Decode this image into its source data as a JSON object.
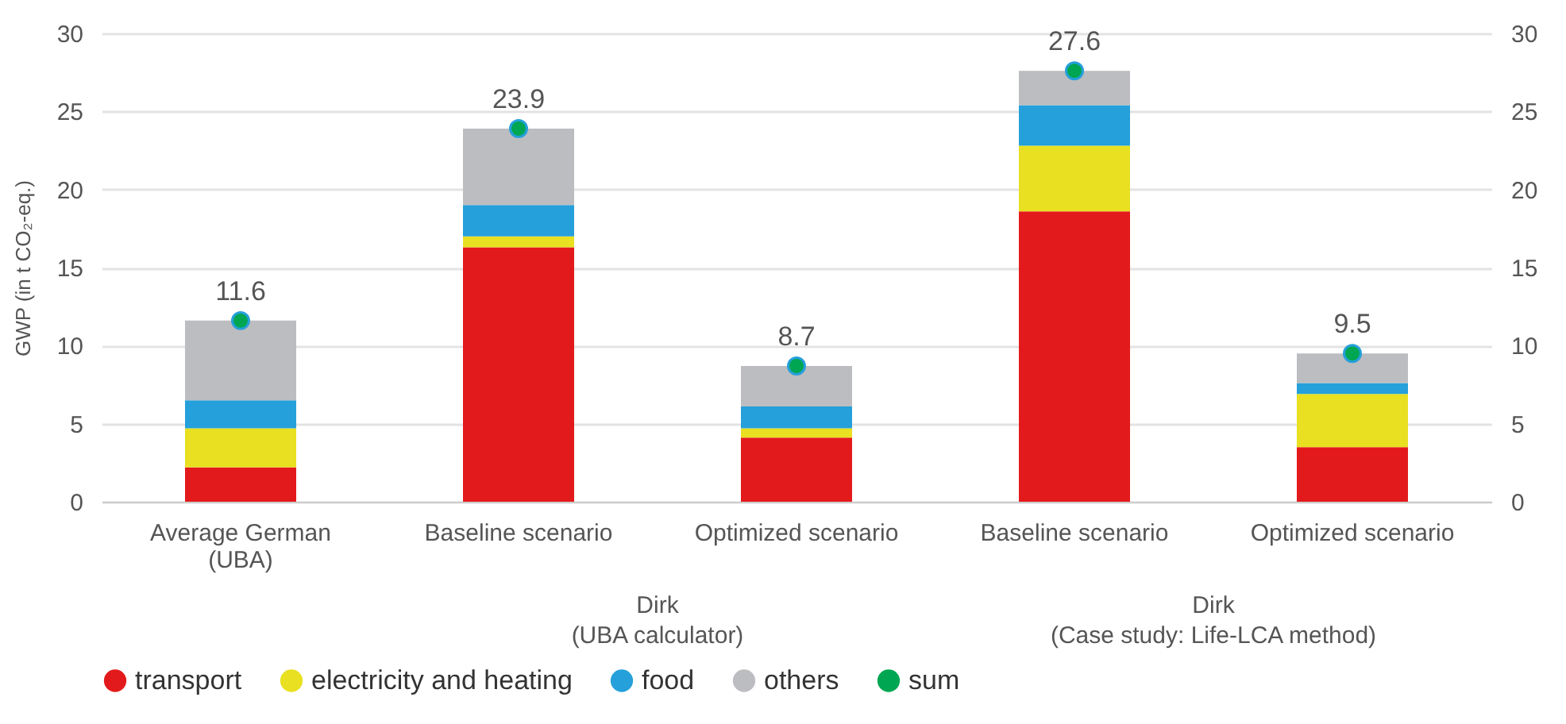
{
  "chart_data": {
    "type": "bar",
    "stacked": true,
    "ylabel": "GWP (in t CO₂-eq.)",
    "categories": [
      "Average German\n(UBA)",
      "Baseline scenario",
      "Optimized scenario",
      "Baseline scenario",
      "Optimized scenario"
    ],
    "annotations": [
      "Dirk\n(UBA calculator)",
      "Dirk\n(Case study: Life-LCA method)"
    ],
    "series": [
      {
        "name": "transport",
        "color": "#e31a1c",
        "values": [
          2.2,
          16.3,
          4.1,
          18.6,
          3.5
        ]
      },
      {
        "name": "electricity and heating",
        "color": "#e8e020",
        "values": [
          2.5,
          0.7,
          0.6,
          4.2,
          3.4
        ]
      },
      {
        "name": "food",
        "color": "#25a0da",
        "values": [
          1.8,
          2.0,
          1.4,
          2.6,
          0.7
        ]
      },
      {
        "name": "others",
        "color": "#bcbdc0",
        "values": [
          5.1,
          4.9,
          2.6,
          2.2,
          1.9
        ]
      },
      {
        "name": "sum",
        "type": "scatter",
        "color": "#00a651",
        "values": [
          11.6,
          23.9,
          8.7,
          27.6,
          9.5
        ],
        "value_labels": [
          "11.6",
          "23.9",
          "8.7",
          "27.6",
          "9.5"
        ]
      }
    ],
    "ylim": [
      0,
      30
    ],
    "yticks": [
      0,
      5,
      10,
      15,
      20,
      25,
      30
    ],
    "y2lim": [
      0,
      30
    ],
    "y2ticks": [
      0,
      5,
      10,
      15,
      20,
      25,
      30
    ],
    "grid": "y",
    "legend": "bottom",
    "marker": "circle"
  }
}
